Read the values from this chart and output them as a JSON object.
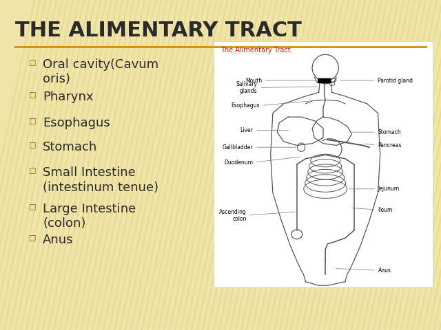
{
  "title": "THE ALIMENTARY TRACT",
  "title_fontsize": 22,
  "title_color": "#2a2a2a",
  "title_underline_color": "#c8940a",
  "bg_color": "#f0e4a8",
  "bullet_char": "□",
  "bullet_color": "#7a5c00",
  "bullet_items": [
    "Oral cavity(Cavum\noris)",
    "Pharynx",
    "Esophagus",
    "Stomach",
    "Small Intestine\n(intestinum tenue)",
    "Large Intestine\n(colon)",
    "Anus"
  ],
  "bullet_fontsize": 13,
  "bullet_text_color": "#2a2a2a",
  "image_title": "The Alimentary Tract",
  "image_title_color": "#cc2200",
  "image_title_fontsize": 7
}
